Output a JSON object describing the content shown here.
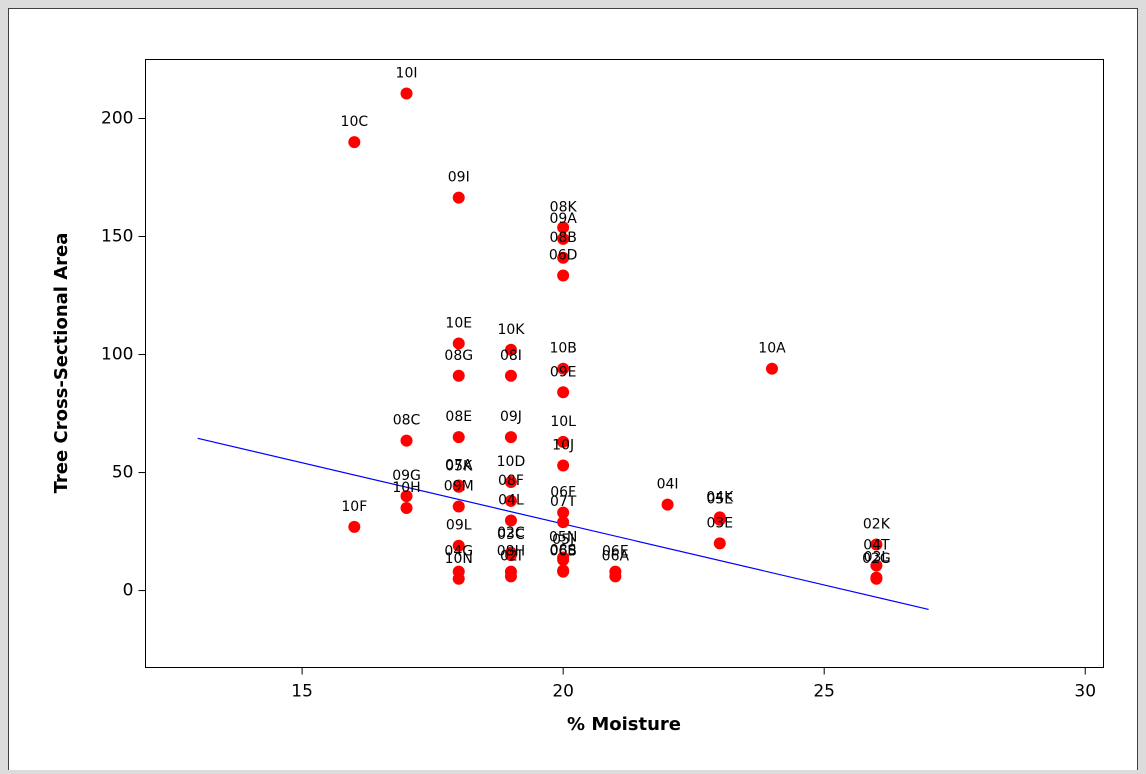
{
  "chart_data": {
    "type": "scatter",
    "x_label": "% Moisture",
    "y_label": "Tree Cross-Sectional Area",
    "xlim": [
      12,
      30.35
    ],
    "ylim": [
      -32.6,
      225
    ],
    "xticks": [
      15,
      20,
      25,
      30
    ],
    "yticks": [
      0,
      50,
      100,
      150,
      200
    ],
    "grid": false,
    "series": [
      {
        "color": "#ff0000",
        "labels": [
          "10I",
          "10C",
          "09I",
          "08K",
          "09A",
          "08B",
          "06D",
          "10E",
          "10K",
          "08G",
          "08I",
          "10B",
          "10A",
          "09E",
          "08C",
          "08E",
          "09J",
          "10L",
          "10J",
          "10D",
          "07A",
          "05K",
          "08F",
          "09G",
          "10H",
          "09M",
          "04L",
          "06F",
          "07T",
          "10F",
          "04I",
          "04K",
          "05E",
          "03E",
          "09L",
          "02C",
          "03C",
          "05N",
          "05J",
          "08S",
          "02K",
          "04T",
          "03L",
          "02G",
          "10N",
          "06A",
          "02I",
          "04G",
          "08H",
          "06B",
          "06E"
        ],
        "x": [
          17,
          16,
          18,
          20,
          20,
          20,
          20,
          18,
          19,
          18,
          19,
          20,
          24,
          20,
          17,
          18,
          19,
          20,
          20,
          19,
          18,
          18,
          19,
          17,
          17,
          18,
          19,
          20,
          20,
          16,
          22,
          23,
          23,
          23,
          18,
          19,
          19,
          20,
          20,
          20,
          26,
          26,
          26,
          26,
          18,
          21,
          19,
          18,
          19,
          20,
          21
        ],
        "values": [
          210.6,
          190,
          166.5,
          153.8,
          149,
          141,
          133.5,
          104.7,
          102,
          91,
          91,
          94,
          94,
          84,
          63.5,
          65,
          65,
          63,
          53,
          46,
          44.5,
          44,
          38,
          40,
          35,
          35.6,
          29.7,
          33,
          29,
          27,
          36.4,
          31,
          30,
          20,
          19,
          16,
          15,
          14,
          13,
          8.5,
          19.5,
          10.6,
          5.5,
          5,
          5,
          6,
          6,
          8,
          8,
          8,
          8
        ]
      }
    ],
    "fit_line": {
      "color": "#0000ff",
      "x": [
        13,
        27
      ],
      "values": [
        64.5,
        -8
      ]
    }
  }
}
